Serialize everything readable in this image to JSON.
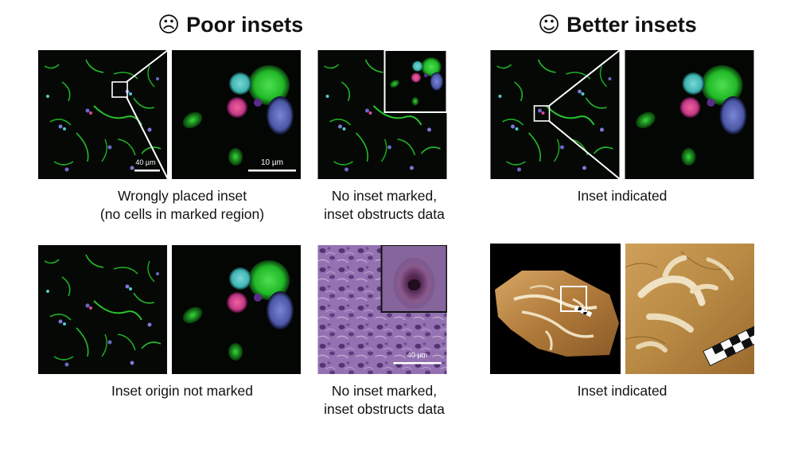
{
  "headings": {
    "poor": {
      "icon": "frowning-face-icon",
      "face": "☹",
      "text": "Poor insets"
    },
    "better": {
      "icon": "smiling-face-icon",
      "face": "☺",
      "text": "Better insets"
    }
  },
  "scale_bars": {
    "overview": "40 µm",
    "zoom": "10 µm",
    "tissue": "40 µm"
  },
  "captions": {
    "wrongly_placed_line1": "Wrongly placed inset",
    "wrongly_placed_line2": "(no cells in marked region)",
    "no_inset_line1": "No inset marked,",
    "no_inset_line2": "inset obstructs data",
    "inset_indicated_top": "Inset indicated",
    "origin_not_marked": "Inset origin not marked",
    "no_inset2_line1": "No inset marked,",
    "no_inset2_line2": "inset obstructs data",
    "inset_indicated_bottom": "Inset indicated"
  },
  "colors": {
    "green_cell": "#22c32a",
    "cyan_cell": "#4fc6c4",
    "magenta_cell": "#d93f8f",
    "blue_cell": "#5a66b8",
    "tissue": "#8a68a8",
    "fossil": "#b07a3a"
  }
}
